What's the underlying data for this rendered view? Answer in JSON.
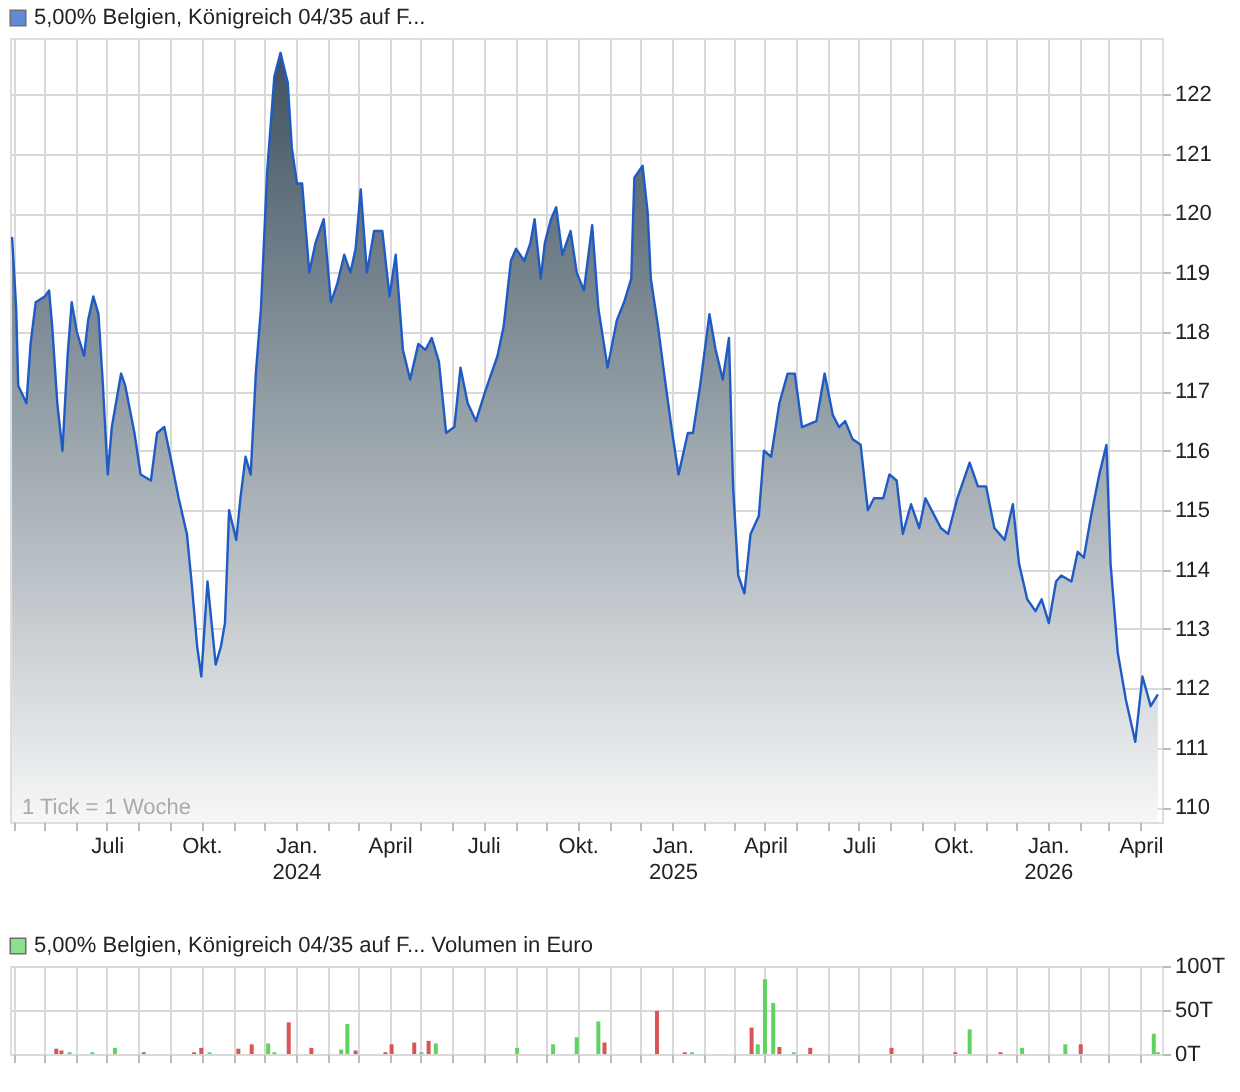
{
  "chart_data": [
    {
      "type": "area",
      "xlim": [
        "2023-03-29",
        "2026-04-22"
      ],
      "ylim": [
        109.75,
        122.95
      ],
      "yticks": [
        110,
        111,
        112,
        113,
        114,
        115,
        116,
        117,
        118,
        119,
        120,
        121,
        122
      ],
      "xticks": [
        {
          "value": "2023-04-01",
          "label": null
        },
        {
          "value": "2023-05-01",
          "label": null
        },
        {
          "value": "2023-06-01",
          "label": null
        },
        {
          "value": "2023-07-01",
          "label": "Juli"
        },
        {
          "value": "2023-08-01",
          "label": null
        },
        {
          "value": "2023-09-01",
          "label": null
        },
        {
          "value": "2023-10-01",
          "label": "Okt."
        },
        {
          "value": "2023-11-01",
          "label": null
        },
        {
          "value": "2023-12-01",
          "label": null
        },
        {
          "value": "2024-01-01",
          "label": "Jan. 2024"
        },
        {
          "value": "2024-02-01",
          "label": null
        },
        {
          "value": "2024-03-01",
          "label": null
        },
        {
          "value": "2024-04-01",
          "label": "April"
        },
        {
          "value": "2024-05-01",
          "label": null
        },
        {
          "value": "2024-06-01",
          "label": null
        },
        {
          "value": "2024-07-01",
          "label": "Juli"
        },
        {
          "value": "2024-08-01",
          "label": null
        },
        {
          "value": "2024-09-01",
          "label": null
        },
        {
          "value": "2024-10-01",
          "label": "Okt."
        },
        {
          "value": "2024-11-01",
          "label": null
        },
        {
          "value": "2024-12-01",
          "label": null
        },
        {
          "value": "2025-01-01",
          "label": "Jan. 2025"
        },
        {
          "value": "2025-02-01",
          "label": null
        },
        {
          "value": "2025-03-01",
          "label": null
        },
        {
          "value": "2025-04-01",
          "label": "April"
        },
        {
          "value": "2025-05-01",
          "label": null
        },
        {
          "value": "2025-06-01",
          "label": null
        },
        {
          "value": "2025-07-01",
          "label": "Juli"
        },
        {
          "value": "2025-08-01",
          "label": null
        },
        {
          "value": "2025-09-01",
          "label": null
        },
        {
          "value": "2025-10-01",
          "label": "Okt."
        },
        {
          "value": "2025-11-01",
          "label": null
        },
        {
          "value": "2025-12-01",
          "label": null
        },
        {
          "value": "2026-01-01",
          "label": "Jan. 2026"
        },
        {
          "value": "2026-02-01",
          "label": null
        },
        {
          "value": "2026-03-01",
          "label": null
        },
        {
          "value": "2026-04-01",
          "label": "April"
        }
      ],
      "grid": true,
      "legend": "top left",
      "annotations": [
        "1 Tick = 1 Woche"
      ],
      "series": [
        {
          "name": "5,00% Belgien, Königreich 04/35 auf F...",
          "color": "#1f5bc5",
          "x": [
            "2023-03-31",
            "2023-04-04",
            "2023-04-06",
            "2023-04-14",
            "2023-04-18",
            "2023-04-23",
            "2023-05-02",
            "2023-05-06",
            "2023-05-09",
            "2023-05-14",
            "2023-05-19",
            "2023-05-24",
            "2023-05-28",
            "2023-06-02",
            "2023-06-09",
            "2023-06-13",
            "2023-06-18",
            "2023-06-23",
            "2023-06-27",
            "2023-07-02",
            "2023-07-06",
            "2023-07-15",
            "2023-07-19",
            "2023-07-28",
            "2023-08-03",
            "2023-08-13",
            "2023-08-19",
            "2023-08-26",
            "2023-09-01",
            "2023-09-09",
            "2023-09-17",
            "2023-09-22",
            "2023-09-27",
            "2023-10-01",
            "2023-10-07",
            "2023-10-11",
            "2023-10-15",
            "2023-10-20",
            "2023-10-24",
            "2023-10-28",
            "2023-11-04",
            "2023-11-08",
            "2023-11-13",
            "2023-11-18",
            "2023-11-23",
            "2023-11-28",
            "2023-12-04",
            "2023-12-11",
            "2023-12-17",
            "2023-12-24",
            "2023-12-28",
            "2024-01-02",
            "2024-01-07",
            "2024-01-14",
            "2024-01-20",
            "2024-01-28",
            "2024-02-04",
            "2024-02-10",
            "2024-02-17",
            "2024-02-23",
            "2024-02-28",
            "2024-03-04",
            "2024-03-10",
            "2024-03-17",
            "2024-03-25",
            "2024-04-01",
            "2024-04-07",
            "2024-04-14",
            "2024-04-21",
            "2024-04-29",
            "2024-05-06",
            "2024-05-12",
            "2024-05-19",
            "2024-05-26",
            "2024-06-03",
            "2024-06-09",
            "2024-06-16",
            "2024-06-24",
            "2024-07-03",
            "2024-07-15",
            "2024-07-21",
            "2024-07-28",
            "2024-08-02",
            "2024-08-10",
            "2024-08-16",
            "2024-08-20",
            "2024-08-26",
            "2024-08-30",
            "2024-09-05",
            "2024-09-10",
            "2024-09-16",
            "2024-09-24",
            "2024-09-30",
            "2024-10-07",
            "2024-10-15",
            "2024-10-21",
            "2024-10-30",
            "2024-11-08",
            "2024-11-15",
            "2024-11-22",
            "2024-11-25",
            "2024-12-03",
            "2024-12-08",
            "2024-12-11",
            "2024-12-18",
            "2024-12-24",
            "2024-12-31",
            "2025-01-07",
            "2025-01-16",
            "2025-01-21",
            "2025-01-28",
            "2025-02-06",
            "2025-02-12",
            "2025-02-19",
            "2025-02-25",
            "2025-03-01",
            "2025-03-06",
            "2025-03-12",
            "2025-03-18",
            "2025-03-26",
            "2025-03-31",
            "2025-04-07",
            "2025-04-15",
            "2025-04-23",
            "2025-04-30",
            "2025-05-07",
            "2025-05-21",
            "2025-05-29",
            "2025-06-06",
            "2025-06-12",
            "2025-06-18",
            "2025-06-25",
            "2025-07-03",
            "2025-07-10",
            "2025-07-16",
            "2025-07-25",
            "2025-07-31",
            "2025-08-07",
            "2025-08-13",
            "2025-08-21",
            "2025-08-29",
            "2025-09-04",
            "2025-09-13",
            "2025-09-19",
            "2025-09-26",
            "2025-10-05",
            "2025-10-17",
            "2025-10-25",
            "2025-11-02",
            "2025-11-10",
            "2025-11-20",
            "2025-11-28",
            "2025-12-04",
            "2025-12-12",
            "2025-12-20",
            "2025-12-26",
            "2026-01-02",
            "2026-01-09",
            "2026-01-14",
            "2026-01-24",
            "2026-01-30",
            "2026-02-05",
            "2026-02-12",
            "2026-02-20",
            "2026-02-27",
            "2026-03-03",
            "2026-03-10",
            "2026-03-18",
            "2026-03-27",
            "2026-04-03",
            "2026-04-11",
            "2026-04-18"
          ],
          "values": [
            119.6,
            118.4,
            117.1,
            116.8,
            117.8,
            118.5,
            118.6,
            118.7,
            118.1,
            116.8,
            116.0,
            117.6,
            118.5,
            118.0,
            117.6,
            118.2,
            118.6,
            118.3,
            117.2,
            115.6,
            116.4,
            117.3,
            117.1,
            116.3,
            115.6,
            115.5,
            116.3,
            116.4,
            115.9,
            115.2,
            114.6,
            113.7,
            112.7,
            112.2,
            113.8,
            113.1,
            112.4,
            112.7,
            113.1,
            115.0,
            114.5,
            115.2,
            115.9,
            115.6,
            117.3,
            118.4,
            120.7,
            122.3,
            122.7,
            122.2,
            121.1,
            120.5,
            120.5,
            119.0,
            119.5,
            119.9,
            118.5,
            118.8,
            119.3,
            119.0,
            119.4,
            120.4,
            119.0,
            119.7,
            119.7,
            118.6,
            119.3,
            117.7,
            117.2,
            117.8,
            117.7,
            117.9,
            117.5,
            116.3,
            116.4,
            117.4,
            116.8,
            116.5,
            117.0,
            117.6,
            118.1,
            119.2,
            119.4,
            119.2,
            119.5,
            119.9,
            118.9,
            119.5,
            119.9,
            120.1,
            119.3,
            119.7,
            119.0,
            118.7,
            119.8,
            118.4,
            117.4,
            118.2,
            118.5,
            118.9,
            120.6,
            120.8,
            120.0,
            118.9,
            118.1,
            117.3,
            116.4,
            115.6,
            116.3,
            116.3,
            117.1,
            118.3,
            117.7,
            117.2,
            117.9,
            115.4,
            113.9,
            113.6,
            114.6,
            114.9,
            116.0,
            115.9,
            116.8,
            117.3,
            117.3,
            116.4,
            116.5,
            117.3,
            116.6,
            116.4,
            116.5,
            116.2,
            116.1,
            115.0,
            115.2,
            115.2,
            115.6,
            115.5,
            114.6,
            115.1,
            114.7,
            115.2,
            114.9,
            114.7,
            114.6,
            115.2,
            115.8,
            115.4,
            115.4,
            114.7,
            114.5,
            115.1,
            114.1,
            113.5,
            113.3,
            113.5,
            113.1,
            113.8,
            113.9,
            113.8,
            114.3,
            114.2,
            114.9,
            115.6,
            116.1,
            114.1,
            112.6,
            111.8,
            111.1,
            112.2,
            111.7,
            111.9
          ]
        }
      ]
    },
    {
      "type": "bar",
      "xlim": [
        "2023-03-29",
        "2026-04-22"
      ],
      "ylim": [
        0,
        100
      ],
      "yticks": [
        {
          "value": 0,
          "label": "0T"
        },
        {
          "value": 50,
          "label": "50T"
        },
        {
          "value": 100,
          "label": "100T"
        }
      ],
      "xticks": [
        "2023-04-01",
        "2023-05-01",
        "2023-06-01",
        "2023-07-01",
        "2023-08-01",
        "2023-09-01",
        "2023-10-01",
        "2023-11-01",
        "2023-12-01",
        "2024-01-01",
        "2024-02-01",
        "2024-03-01",
        "2024-04-01",
        "2024-05-01",
        "2024-06-01",
        "2024-07-01",
        "2024-08-01",
        "2024-09-01",
        "2024-10-01",
        "2024-11-01",
        "2024-12-01",
        "2025-01-01",
        "2025-02-01",
        "2025-03-01",
        "2025-04-01",
        "2025-05-01",
        "2025-06-01",
        "2025-07-01",
        "2025-08-01",
        "2025-09-01",
        "2025-10-01",
        "2025-11-01",
        "2025-12-01",
        "2026-01-01",
        "2026-02-01",
        "2026-03-01",
        "2026-04-01"
      ],
      "tick_labels": "y",
      "grid": true,
      "legend": "top left",
      "series": [
        {
          "name": "5,00% Belgien, Königreich 04/35 auf F... Volumen in Euro",
          "color": "#5fd35f",
          "x": [
            "2023-05-26",
            "2023-06-17",
            "2023-07-09",
            "2023-10-09",
            "2023-12-05",
            "2023-12-11",
            "2024-02-14",
            "2024-02-20",
            "2024-05-02",
            "2024-05-16",
            "2024-08-03",
            "2024-09-07",
            "2024-09-30",
            "2024-10-21",
            "2025-01-20",
            "2025-03-25",
            "2025-04-01",
            "2025-04-09",
            "2025-04-29",
            "2025-10-17",
            "2025-12-07",
            "2026-01-18",
            "2026-04-14",
            "2026-04-18"
          ],
          "values": [
            2,
            2,
            7,
            2,
            12,
            2,
            5,
            34,
            2,
            12,
            7,
            11,
            19,
            37,
            2,
            11,
            85,
            58,
            2,
            28,
            7,
            11,
            23,
            2
          ]
        },
        {
          "color": "#d95454",
          "x": [
            "2023-05-13",
            "2023-05-18",
            "2023-08-06",
            "2023-09-24",
            "2023-10-01",
            "2023-11-06",
            "2023-11-19",
            "2023-12-25",
            "2024-01-16",
            "2024-02-28",
            "2024-03-28",
            "2024-04-03",
            "2024-04-25",
            "2024-05-09",
            "2024-10-27",
            "2024-12-17",
            "2025-01-13",
            "2025-03-19",
            "2025-04-15",
            "2025-05-15",
            "2025-08-02",
            "2025-10-03",
            "2025-11-16",
            "2026-02-02"
          ],
          "values": [
            6,
            4,
            2,
            2,
            7,
            6,
            11,
            36,
            7,
            4,
            2,
            11,
            13,
            15,
            13,
            49,
            2,
            30,
            8,
            7,
            7,
            2,
            2,
            11
          ]
        }
      ]
    }
  ]
}
